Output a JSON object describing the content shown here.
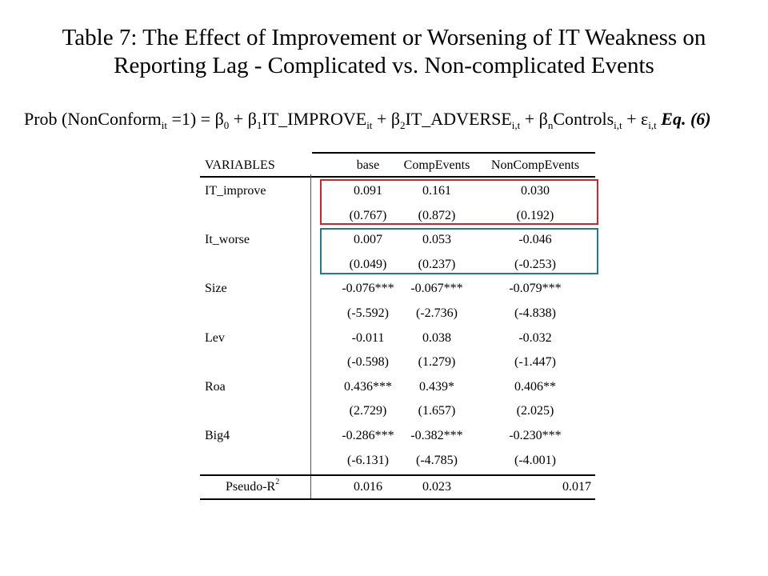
{
  "title": {
    "line1": "Table 7: The Effect of Improvement or Worsening of IT Weakness on",
    "line2": "Reporting Lag - Complicated vs. Non-complicated Events"
  },
  "equation": {
    "t1": "Prob (NonConform",
    "s1": "it",
    "t2": " =1) = β",
    "s2": "0",
    "t3": " + β",
    "s3": "1",
    "t4": "IT_IMPROVE",
    "s4": "it",
    "t5": " + β",
    "s5": "2",
    "t6": "IT_ADVERSE",
    "s6": "i,t",
    "t7": " + β",
    "s7": "n",
    "t8": "Controls",
    "s8": "i,t",
    "t9": " + ε",
    "s9": "i,t",
    "label": "Eq. (6)"
  },
  "table": {
    "headers": [
      "VARIABLES",
      "base",
      "CompEvents",
      "NonCompEvents"
    ],
    "rows": [
      {
        "label": "IT_improve",
        "base": "0.091",
        "comp": "0.161",
        "noncomp": "0.030"
      },
      {
        "label": "",
        "base": "(0.767)",
        "comp": "(0.872)",
        "noncomp": "(0.192)"
      },
      {
        "label": "It_worse",
        "base": "0.007",
        "comp": "0.053",
        "noncomp": "-0.046"
      },
      {
        "label": "",
        "base": "(0.049)",
        "comp": "(0.237)",
        "noncomp": "(-0.253)"
      },
      {
        "label": "Size",
        "base": "-0.076***",
        "comp": "-0.067***",
        "noncomp": "-0.079***"
      },
      {
        "label": "",
        "base": "(-5.592)",
        "comp": "(-2.736)",
        "noncomp": "(-4.838)"
      },
      {
        "label": "Lev",
        "base": "-0.011",
        "comp": "0.038",
        "noncomp": "-0.032"
      },
      {
        "label": "",
        "base": "(-0.598)",
        "comp": "(1.279)",
        "noncomp": "(-1.447)"
      },
      {
        "label": "Roa",
        "base": "0.436***",
        "comp": "0.439*",
        "noncomp": "0.406**"
      },
      {
        "label": "",
        "base": "(2.729)",
        "comp": "(1.657)",
        "noncomp": "(2.025)"
      },
      {
        "label": "Big4",
        "base": "-0.286***",
        "comp": "-0.382***",
        "noncomp": "-0.230***"
      },
      {
        "label": "",
        "base": "(-6.131)",
        "comp": "(-4.785)",
        "noncomp": "(-4.001)"
      }
    ],
    "footer": {
      "label": "Pseudo-R",
      "label_sup": "2",
      "base": "0.016",
      "comp": "0.023",
      "noncomp": "0.017"
    },
    "colors": {
      "improve_box": "#d2232a",
      "worse_box": "#1f7a8c"
    }
  }
}
